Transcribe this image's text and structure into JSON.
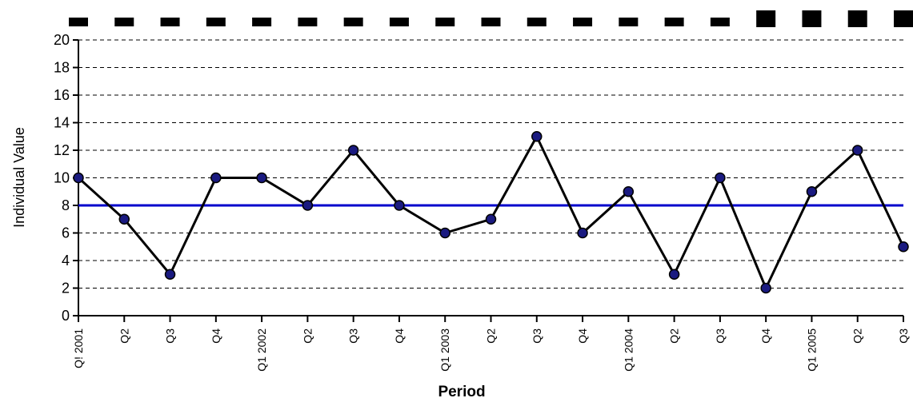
{
  "chart_data": {
    "type": "line",
    "title": "",
    "xlabel": "Period",
    "ylabel": "Individual Value",
    "ylim": [
      0,
      20
    ],
    "yticks": [
      0,
      2,
      4,
      6,
      8,
      10,
      12,
      14,
      16,
      18,
      20
    ],
    "grid": true,
    "categories": [
      "Q! 2001",
      "Q2",
      "Q3",
      "Q4",
      "Q1 2002",
      "Q2",
      "Q3",
      "Q4",
      "Q1 2003",
      "Q2",
      "Q3",
      "Q4",
      "Q1 2004",
      "Q2",
      "Q3",
      "Q4",
      "Q1 2005",
      "Q2",
      "Q3"
    ],
    "series": [
      {
        "values": [
          10,
          7,
          3,
          10,
          10,
          8,
          12,
          8,
          6,
          7,
          13,
          6,
          9,
          3,
          10,
          2,
          9,
          12,
          5
        ],
        "color": "#000000",
        "marker_color": "#1a1a80"
      }
    ],
    "center_line": {
      "value": 8,
      "color": "#0000cc"
    },
    "top_markers": {
      "count": 19,
      "small_count": 15,
      "color": "#000000"
    }
  }
}
